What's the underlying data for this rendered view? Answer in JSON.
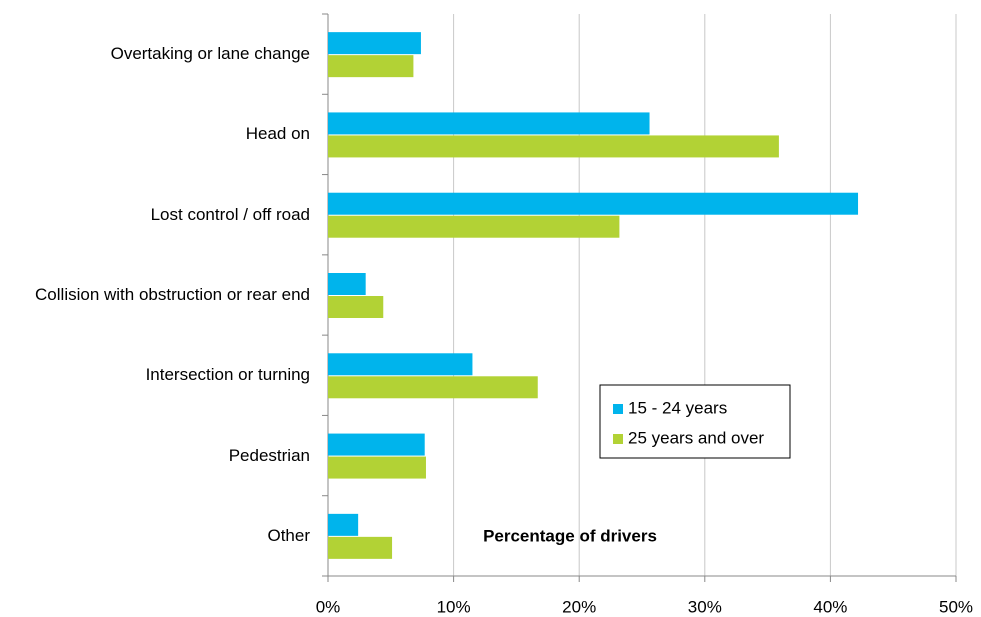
{
  "chart_data": {
    "type": "hbar",
    "x_label": "Percentage of drivers",
    "categories": [
      "Overtaking or lane change",
      "Head on",
      "Lost control / off road",
      "Collision with obstruction or rear end",
      "Intersection or turning",
      "Pedestrian",
      "Other"
    ],
    "series": [
      {
        "name": "15 - 24 years",
        "color": "#00b4ec",
        "values": [
          7.4,
          25.6,
          42.2,
          3.0,
          11.5,
          7.7,
          2.4
        ]
      },
      {
        "name": "25 years and over",
        "color": "#b2d235",
        "values": [
          6.8,
          35.9,
          23.2,
          4.4,
          16.7,
          7.8,
          5.1
        ]
      }
    ],
    "xlim": [
      0,
      50
    ],
    "xticks": [
      {
        "value": 0,
        "label": "0%"
      },
      {
        "value": 10,
        "label": "10%"
      },
      {
        "value": 20,
        "label": "20%"
      },
      {
        "value": 30,
        "label": "30%"
      },
      {
        "value": 40,
        "label": "40%"
      },
      {
        "value": 50,
        "label": "50%"
      }
    ],
    "grid": true
  }
}
